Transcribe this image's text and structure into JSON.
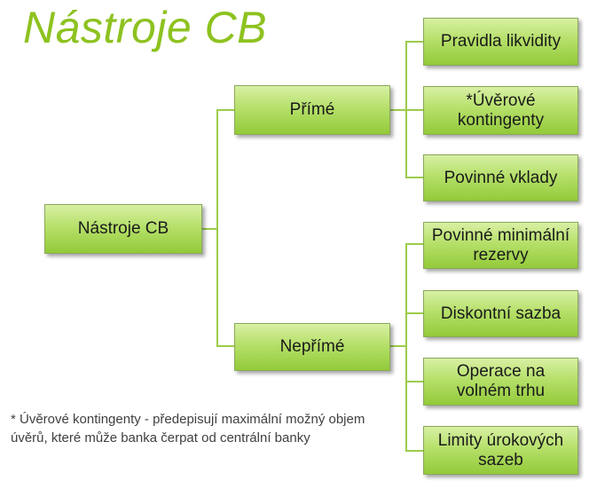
{
  "title": "Nástroje CB",
  "root": "Nástroje CB",
  "branches": [
    {
      "label": "Přímé",
      "children": [
        "Pravidla likvidity",
        "*Úvěrové kontingenty",
        "Povinné vklady"
      ]
    },
    {
      "label": "Nepřímé",
      "children": [
        "Povinné minimální rezervy",
        "Diskontní sazba",
        "Operace na volném trhu",
        "Limity úrokových sazeb"
      ]
    }
  ],
  "footnote": "* Úvěrové kontingenty - předepisují maximální možný objem úvěrů, které může banka čerpat od centrální banky",
  "colors": {
    "title": "#8dc21f",
    "box_top": "#d8f0a4",
    "box_bottom": "#93ca3a",
    "connector": "#9ccc4a"
  }
}
